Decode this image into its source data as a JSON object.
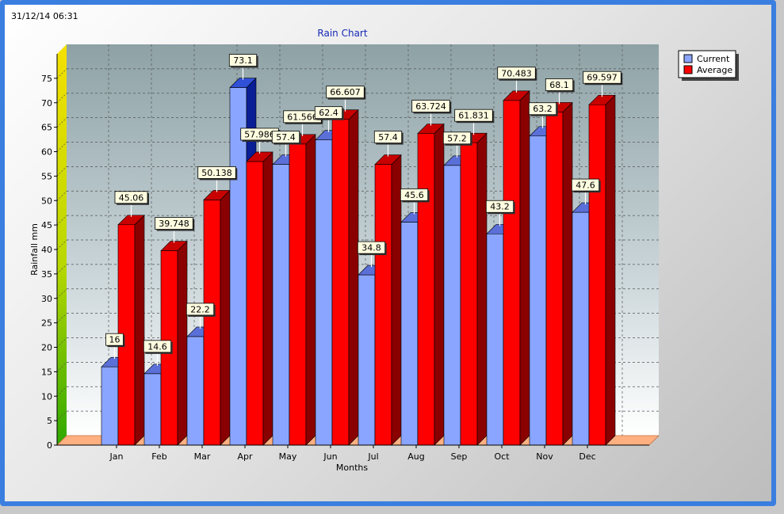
{
  "timestamp": "31/12/14 06:31",
  "chart_data": {
    "type": "bar",
    "title": "Rain Chart",
    "xlabel": "Months",
    "ylabel": "Rainfall mm",
    "ylim": [
      0,
      80
    ],
    "yticks": [
      0,
      5,
      10,
      15,
      20,
      25,
      30,
      35,
      40,
      45,
      50,
      55,
      60,
      65,
      70,
      75
    ],
    "categories": [
      "Jan",
      "Feb",
      "Mar",
      "Apr",
      "May",
      "Jun",
      "Jul",
      "Aug",
      "Sep",
      "Oct",
      "Nov",
      "Dec"
    ],
    "series": [
      {
        "name": "Current",
        "color": "#8aa5ff",
        "values": [
          16,
          14.6,
          22.2,
          73.1,
          57.4,
          62.4,
          34.8,
          45.6,
          57.2,
          43.2,
          63.2,
          47.6
        ],
        "labels": [
          "16",
          "14.6",
          "22.2",
          "73.1",
          "57.4",
          "62.4",
          "34.8",
          "45.6",
          "57.2",
          "43.2",
          "63.2",
          "47.6"
        ]
      },
      {
        "name": "Average",
        "color": "#ff0000",
        "values": [
          45.06,
          39.748,
          50.138,
          57.986,
          61.566,
          66.607,
          57.4,
          63.724,
          61.831,
          70.483,
          68.1,
          69.597
        ],
        "labels": [
          "45.06",
          "39.748",
          "50.138",
          "57.986",
          "61.566",
          "66.607",
          "57.4",
          "63.724",
          "61.831",
          "70.483",
          "68.1",
          "69.597"
        ]
      }
    ],
    "grid": true,
    "legend_position": "top-right",
    "highlight_color": "#0a1e96"
  }
}
